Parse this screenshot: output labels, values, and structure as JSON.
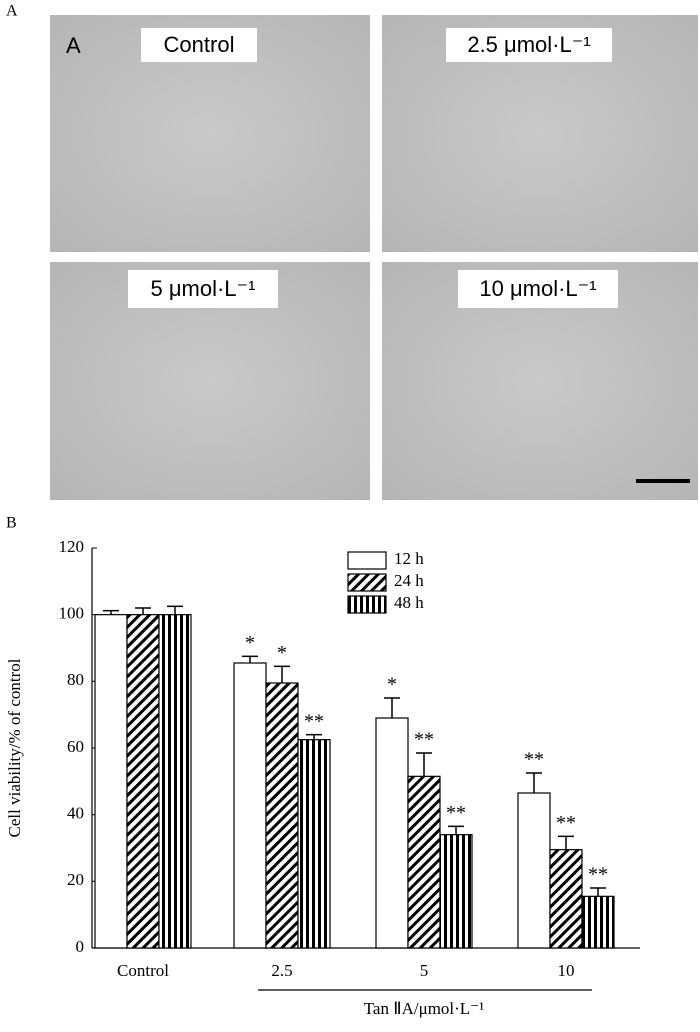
{
  "panel_a": {
    "label": "A",
    "inner_label": "A",
    "images": [
      {
        "label": "Control"
      },
      {
        "label": "2.5 μmol·L⁻¹"
      },
      {
        "label": "5 μmol·L⁻¹"
      },
      {
        "label": "10 μmol·L⁻¹"
      }
    ]
  },
  "chart_data": {
    "type": "bar",
    "panel_label": "B",
    "y_label": "Cell viability/% of control",
    "x_label": "Tan ⅡA/μmol·L⁻¹",
    "categories": [
      "Control",
      "2.5",
      "5",
      "10"
    ],
    "series": [
      {
        "name": "12 h",
        "color": "#000000",
        "pattern": "none",
        "values": [
          100,
          85.5,
          69,
          46.5
        ],
        "errors": [
          1.2,
          2,
          6,
          6
        ],
        "annotations": [
          null,
          "*",
          "*",
          "**"
        ]
      },
      {
        "name": "24 h",
        "color": "#000000",
        "pattern": "diagonal",
        "values": [
          100,
          79.5,
          51.5,
          29.5
        ],
        "errors": [
          2,
          5,
          7,
          4
        ],
        "annotations": [
          null,
          "*",
          "**",
          "**"
        ]
      },
      {
        "name": "48 h",
        "color": "#000000",
        "pattern": "vertical",
        "values": [
          100,
          62.5,
          34,
          15.5
        ],
        "errors": [
          2.5,
          1.5,
          2.5,
          2.5
        ],
        "annotations": [
          null,
          "**",
          "**",
          "**"
        ]
      }
    ],
    "ylim": [
      0,
      120
    ],
    "yticks": [
      0,
      20,
      40,
      60,
      80,
      100,
      120
    ],
    "grid": false,
    "legend": "top"
  }
}
